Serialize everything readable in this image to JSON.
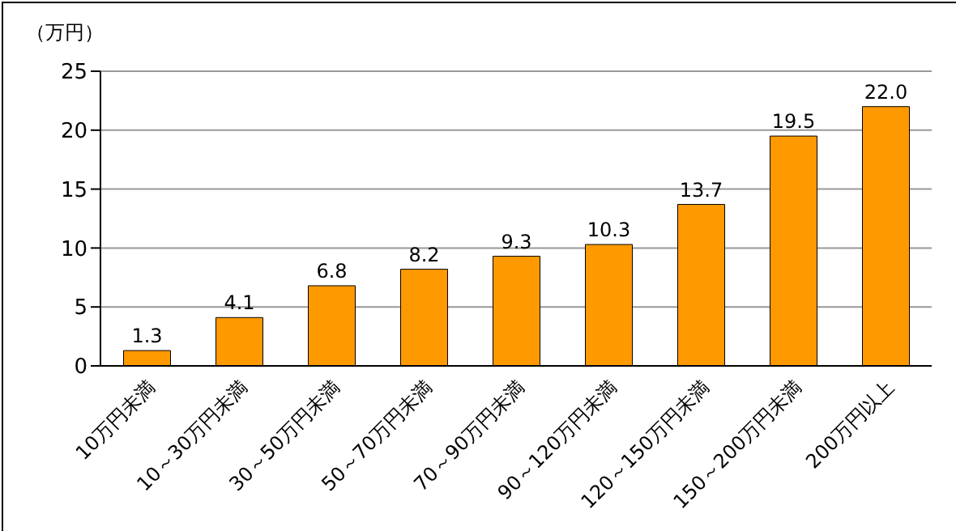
{
  "chart_data": {
    "type": "bar",
    "ylabel": "（万円）",
    "categories": [
      "10万円未満",
      "10～30万円未満",
      "30～50万円未満",
      "50～70万円未満",
      "70～90万円未満",
      "90～120万円未満",
      "120～150万円未満",
      "150～200万円未満",
      "200万円以上"
    ],
    "values": [
      1.3,
      4.1,
      6.8,
      8.2,
      9.3,
      10.3,
      13.7,
      19.5,
      22.0
    ],
    "value_labels": [
      "1.3",
      "4.1",
      "6.8",
      "8.2",
      "9.3",
      "10.3",
      "13.7",
      "19.5",
      "22.0"
    ],
    "color": "#ff9900",
    "ylim": [
      0,
      25
    ],
    "yticks": [
      0,
      5,
      10,
      15,
      20,
      25
    ],
    "grid": "y"
  }
}
